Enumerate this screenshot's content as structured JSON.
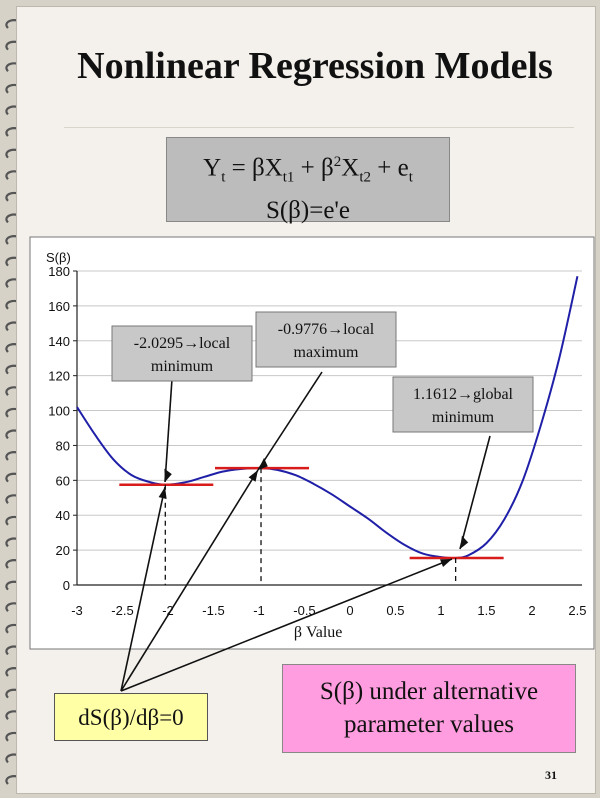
{
  "slide": {
    "title": "Nonlinear Regression Models",
    "formula_line1": {
      "y": "Y",
      "y_sub": "t",
      "eq": " = βX",
      "x1_sub": "t1",
      "plus1": " + β",
      "sq": "2",
      "x2": "X",
      "x2_sub": "t2",
      "plus2": " + e",
      "e_sub": "t"
    },
    "formula_line2": "S(β)=e'e",
    "derivative_label": "dS(β)/dβ=0",
    "caption_line1": "S(β) under alternative",
    "caption_line2": "parameter values",
    "page_number": "31"
  },
  "chart_data": {
    "type": "line",
    "ylabel": "S(β)",
    "xlabel": "β Value",
    "xlim": [
      -3,
      2.55
    ],
    "ylim": [
      0,
      180
    ],
    "x_ticks": [
      "-3",
      "-2.5",
      "-2",
      "-1.5",
      "-1",
      "-0.5",
      "0",
      "0.5",
      "1",
      "1.5",
      "2",
      "2.5"
    ],
    "y_ticks": [
      "0",
      "20",
      "40",
      "60",
      "80",
      "100",
      "120",
      "140",
      "160",
      "180"
    ],
    "grid": "horizontal",
    "line_color": "#1f1fa8",
    "x": [
      -3.0,
      -2.8,
      -2.6,
      -2.4,
      -2.2,
      -2.0295,
      -1.8,
      -1.6,
      -1.4,
      -1.2,
      -0.9776,
      -0.8,
      -0.6,
      -0.4,
      -0.2,
      0.0,
      0.2,
      0.4,
      0.6,
      0.8,
      1.0,
      1.1612,
      1.3,
      1.5,
      1.7,
      1.9,
      2.1,
      2.3,
      2.5
    ],
    "y": [
      102,
      86,
      72,
      63,
      59,
      57.5,
      59,
      62,
      65,
      66.5,
      67,
      66,
      63,
      58,
      52,
      45,
      38,
      30,
      23,
      18,
      16,
      15.5,
      17,
      24,
      38,
      60,
      92,
      130,
      177
    ],
    "stationary_points": [
      {
        "x": -2.0295,
        "y": 57.5,
        "label_line1": "-2.0295→local",
        "label_line2": "minimum"
      },
      {
        "x": -0.9776,
        "y": 67,
        "label_line1": "-0.9776→local",
        "label_line2": "maximum"
      },
      {
        "x": 1.1612,
        "y": 15.5,
        "label_line1": "1.1612→global",
        "label_line2": "minimum"
      }
    ],
    "tangent_color": "#d81b1b"
  }
}
